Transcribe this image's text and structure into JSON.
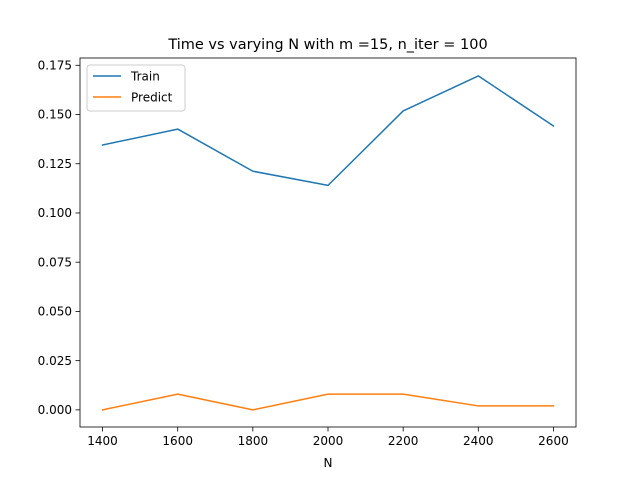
{
  "chart_data": {
    "type": "line",
    "title": "Time vs varying N with m =15, n_iter = 100",
    "xlabel": "N",
    "ylabel": "",
    "x": [
      1400,
      1600,
      1800,
      2000,
      2200,
      2400,
      2600
    ],
    "xlim": [
      1340,
      2660
    ],
    "ylim": [
      -0.0087,
      0.1787
    ],
    "xticks": [
      1400,
      1600,
      1800,
      2000,
      2200,
      2400,
      2600
    ],
    "xtick_labels": [
      "1400",
      "1600",
      "1800",
      "2000",
      "2200",
      "2400",
      "2600"
    ],
    "yticks": [
      0,
      0.025,
      0.05,
      0.075,
      0.1,
      0.125,
      0.15,
      0.175
    ],
    "ytick_labels": [
      "0.000",
      "0.025",
      "0.050",
      "0.075",
      "0.100",
      "0.125",
      "0.150",
      "0.175"
    ],
    "grid": false,
    "legend_position": "upper-left",
    "series": [
      {
        "name": "Train",
        "color": "#1f77b4",
        "values": [
          0.1345,
          0.1426,
          0.1212,
          0.114,
          0.1518,
          0.1696,
          0.1442
        ]
      },
      {
        "name": "Predict",
        "color": "#ff7f0e",
        "values": [
          0.0,
          0.008,
          0.0,
          0.008,
          0.008,
          0.002,
          0.002
        ]
      }
    ]
  }
}
